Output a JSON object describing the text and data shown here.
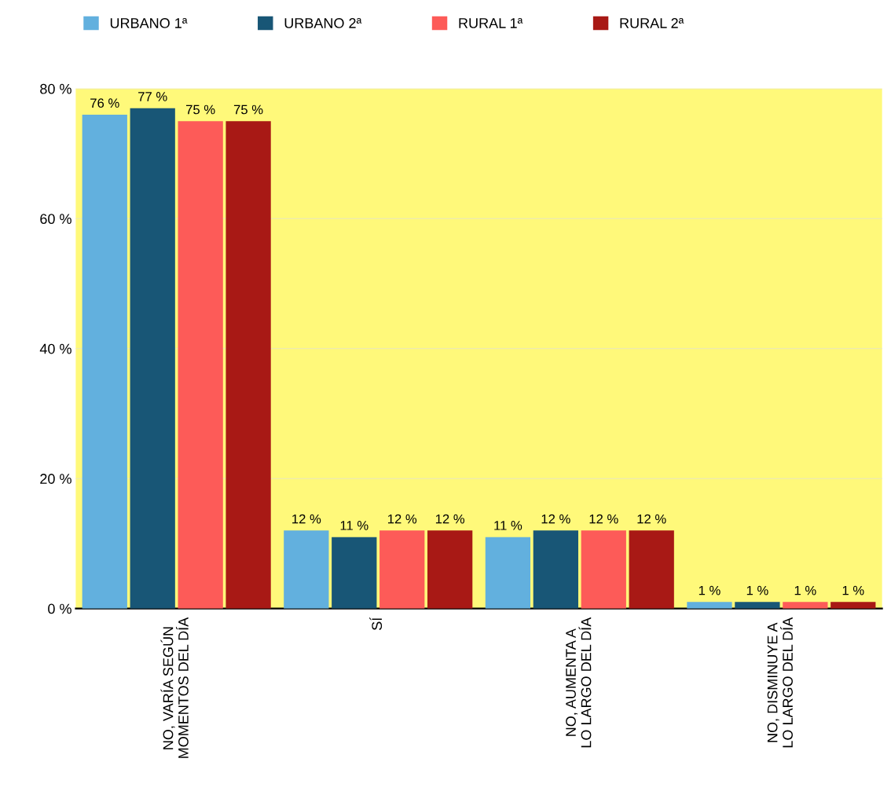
{
  "chart_data": {
    "type": "bar",
    "categories": [
      "NO, VARÍA SEGÚN\nMOMENTOS DEL DÍA",
      "SÍ",
      "NO, AUMENTA A\nLO LARGO DEL DÍA",
      "NO, DISMINUYE A\nLO LARGO DEL DÍA"
    ],
    "series": [
      {
        "name": "URBANO 1ª",
        "color": "#62b0de",
        "values": [
          76,
          12,
          11,
          1
        ],
        "value_labels": [
          "76 %",
          "12 %",
          "11 %",
          "1 %"
        ]
      },
      {
        "name": "URBANO 2ª",
        "color": "#185676",
        "values": [
          77,
          11,
          12,
          1
        ],
        "value_labels": [
          "77 %",
          "11 %",
          "12 %",
          "1 %"
        ]
      },
      {
        "name": "RURAL 1ª",
        "color": "#fd5b58",
        "values": [
          75,
          12,
          12,
          1
        ],
        "value_labels": [
          "75 %",
          "12 %",
          "12 %",
          "1 %"
        ]
      },
      {
        "name": "RURAL 2ª",
        "color": "#a81915",
        "values": [
          75,
          12,
          12,
          1
        ],
        "value_labels": [
          "75 %",
          "12 %",
          "12 %",
          "1 %"
        ]
      }
    ],
    "ylim": [
      0,
      80
    ],
    "yticks": [
      {
        "value": 0,
        "label": "0 %"
      },
      {
        "value": 20,
        "label": "20 %"
      },
      {
        "value": 40,
        "label": "40 %"
      },
      {
        "value": 60,
        "label": "60 %"
      },
      {
        "value": 80,
        "label": "80 %"
      }
    ],
    "grid": "y",
    "legend": "top"
  }
}
